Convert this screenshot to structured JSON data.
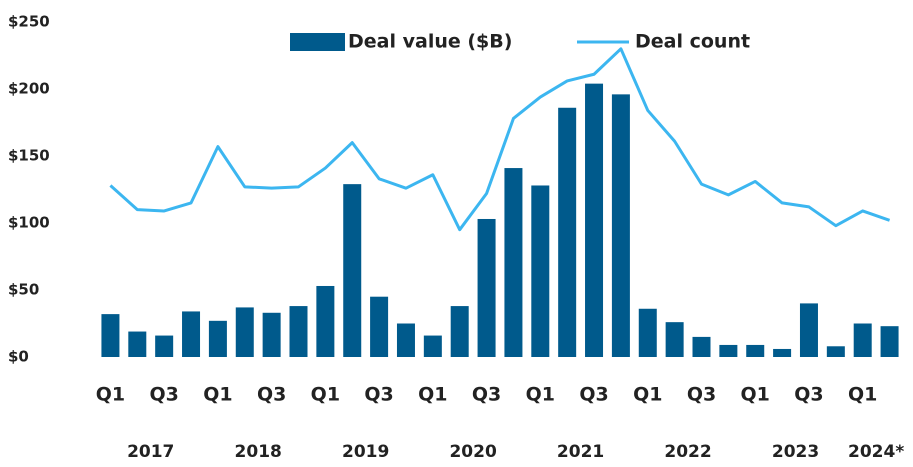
{
  "chart_data": {
    "type": "bar_line",
    "categories": [
      "Q1",
      null,
      "Q3",
      null,
      "Q1",
      null,
      "Q3",
      null,
      "Q1",
      null,
      "Q3",
      null,
      "Q1",
      null,
      "Q3",
      null,
      "Q1",
      null,
      "Q3",
      null,
      "Q1",
      null,
      "Q3",
      null,
      "Q1",
      null,
      "Q3",
      null,
      "Q1",
      null
    ],
    "years": [
      "2017",
      "2018",
      "2019",
      "2020",
      "2021",
      "2022",
      "2023",
      "2024*"
    ],
    "series": [
      {
        "name": "Deal value ($B)",
        "color": "#005a8c",
        "kind": "bar",
        "values": [
          32,
          19,
          16,
          34,
          27,
          37,
          33,
          38,
          53,
          129,
          45,
          25,
          16,
          38,
          103,
          141,
          128,
          186,
          204,
          196,
          36,
          26,
          15,
          9,
          9,
          6,
          40,
          8,
          25,
          23
        ]
      },
      {
        "name": "Deal count",
        "color": "#3cb6f0",
        "kind": "line",
        "values": [
          128,
          110,
          109,
          115,
          157,
          127,
          126,
          127,
          141,
          160,
          133,
          126,
          136,
          95,
          122,
          178,
          194,
          206,
          211,
          230,
          184,
          161,
          129,
          121,
          131,
          115,
          112,
          98,
          109,
          102
        ]
      }
    ],
    "ylim": [
      0,
      250
    ],
    "yticks": [
      {
        "value": 0,
        "label": "$0"
      },
      {
        "value": 50,
        "label": "$50"
      },
      {
        "value": 100,
        "label": "$100"
      },
      {
        "value": 150,
        "label": "$150"
      },
      {
        "value": 200,
        "label": "$200"
      },
      {
        "value": 250,
        "label": "$250"
      }
    ],
    "legend": "top"
  }
}
